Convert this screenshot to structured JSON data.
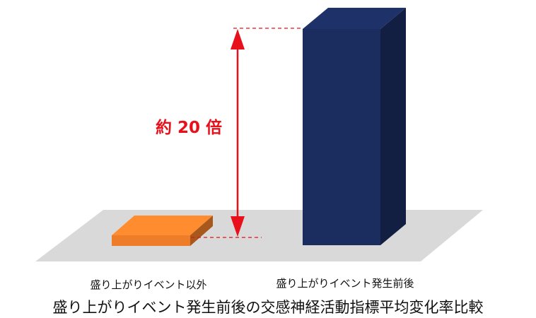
{
  "chart_data": {
    "type": "bar",
    "title": "盛り上がりイベント発生前後の交感神経活動指標平均変化率比較",
    "categories": [
      "盛り上がりイベント以外",
      "盛り上がりイベント発生前後"
    ],
    "values": [
      1,
      20
    ],
    "annotation": "約 20 倍",
    "colors": [
      "#ee7d2a",
      "#1b2d5e"
    ],
    "floor_color": "#d9d9d9",
    "annotation_color": "#e8101a",
    "ylabel": "",
    "xlabel": "",
    "grid": false
  }
}
